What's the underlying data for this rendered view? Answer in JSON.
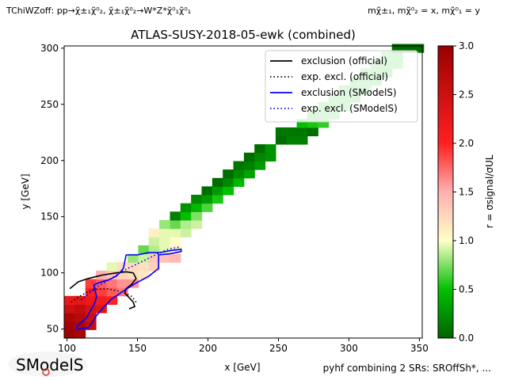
{
  "header": {
    "process_left": "TChiWZoff: pp→χ̃±₁χ̃⁰₂, χ̃±₁χ̃⁰₂→W*Z*χ̃⁰₁χ̃⁰₁",
    "masses_right": "mχ̃±₁, mχ̃⁰₂ = x, mχ̃⁰₁ = y"
  },
  "footer": {
    "combination_note": "pyhf combining 2 SRs: SROffSh*, ...",
    "logo_text": "SModelS"
  },
  "colors": {
    "exclusion_official": "#000000",
    "exclusion_smodels": "#0000ff"
  },
  "chart_data": {
    "type": "heatmap",
    "title": "ATLAS-SUSY-2018-05-ewk (combined)",
    "xlabel": "x [GeV]",
    "ylabel": "y [GeV]",
    "colorbar_label": "r = σsignal/σUL",
    "xlim": [
      98,
      352
    ],
    "ylim": [
      42,
      302
    ],
    "clim": [
      0,
      3
    ],
    "xticks": [
      100,
      150,
      200,
      250,
      300,
      350
    ],
    "yticks": [
      50,
      100,
      150,
      200,
      250,
      300
    ],
    "cticks": [
      0.0,
      0.5,
      1.0,
      1.5,
      2.0,
      2.5,
      3.0
    ],
    "grid": false,
    "legend_position": "top-right",
    "legend": [
      {
        "label": "exclusion (official)",
        "color": "#000000",
        "style": "solid"
      },
      {
        "label": "exp. excl. (official)",
        "color": "#000000",
        "style": "dotted"
      },
      {
        "label": "exclusion (SModelS)",
        "color": "#0000ff",
        "style": "solid"
      },
      {
        "label": "exp. excl. (SModelS)",
        "color": "#0000ff",
        "style": "dotted"
      }
    ],
    "cell_size": {
      "x": 7.5,
      "y": 7.5
    },
    "cells": [
      {
        "x": 101.75,
        "y": 45.75,
        "r": 2.95
      },
      {
        "x": 109.25,
        "y": 45.75,
        "r": 2.85
      },
      {
        "x": 101.75,
        "y": 53.25,
        "r": 2.9
      },
      {
        "x": 109.25,
        "y": 53.25,
        "r": 2.8
      },
      {
        "x": 116.75,
        "y": 53.25,
        "r": 2.6
      },
      {
        "x": 101.75,
        "y": 60.75,
        "r": 2.8
      },
      {
        "x": 109.25,
        "y": 60.75,
        "r": 2.7
      },
      {
        "x": 116.75,
        "y": 60.75,
        "r": 2.5
      },
      {
        "x": 101.75,
        "y": 68.25,
        "r": 2.5
      },
      {
        "x": 109.25,
        "y": 68.25,
        "r": 2.6
      },
      {
        "x": 116.75,
        "y": 68.25,
        "r": 2.4
      },
      {
        "x": 124.25,
        "y": 68.25,
        "r": 2.3
      },
      {
        "x": 101.75,
        "y": 75.75,
        "r": 2.2
      },
      {
        "x": 109.25,
        "y": 75.75,
        "r": 2.3
      },
      {
        "x": 116.75,
        "y": 75.75,
        "r": 2.2
      },
      {
        "x": 124.25,
        "y": 75.75,
        "r": 2.1
      },
      {
        "x": 131.75,
        "y": 75.75,
        "r": 2.0
      },
      {
        "x": 116.75,
        "y": 83.25,
        "r": 2.0
      },
      {
        "x": 124.25,
        "y": 83.25,
        "r": 1.9
      },
      {
        "x": 131.75,
        "y": 83.25,
        "r": 1.8
      },
      {
        "x": 139.25,
        "y": 83.25,
        "r": 1.7
      },
      {
        "x": 116.75,
        "y": 90.75,
        "r": 1.9
      },
      {
        "x": 124.25,
        "y": 90.75,
        "r": 1.8
      },
      {
        "x": 131.75,
        "y": 90.75,
        "r": 1.7
      },
      {
        "x": 139.25,
        "y": 90.75,
        "r": 1.6
      },
      {
        "x": 146.75,
        "y": 90.75,
        "r": 1.6
      },
      {
        "x": 124.25,
        "y": 98.25,
        "r": 1.5
      },
      {
        "x": 131.75,
        "y": 98.25,
        "r": 1.4
      },
      {
        "x": 139.25,
        "y": 98.25,
        "r": 1.3
      },
      {
        "x": 146.75,
        "y": 98.25,
        "r": 1.2
      },
      {
        "x": 154.25,
        "y": 98.25,
        "r": 1.15
      },
      {
        "x": 131.75,
        "y": 105.75,
        "r": 0.95
      },
      {
        "x": 139.25,
        "y": 105.75,
        "r": 1.2
      },
      {
        "x": 146.75,
        "y": 105.75,
        "r": 1.25
      },
      {
        "x": 154.25,
        "y": 105.75,
        "r": 1.2
      },
      {
        "x": 161.75,
        "y": 105.75,
        "r": 1.3
      },
      {
        "x": 146.75,
        "y": 113.25,
        "r": 0.8
      },
      {
        "x": 154.25,
        "y": 113.25,
        "r": 0.9
      },
      {
        "x": 161.75,
        "y": 113.25,
        "r": 1.35
      },
      {
        "x": 169.25,
        "y": 113.25,
        "r": 1.4
      },
      {
        "x": 176.75,
        "y": 113.25,
        "r": 1.45
      },
      {
        "x": 154.25,
        "y": 120.75,
        "r": 0.7
      },
      {
        "x": 161.75,
        "y": 120.75,
        "r": 0.85
      },
      {
        "x": 169.25,
        "y": 120.75,
        "r": 0.95
      },
      {
        "x": 176.75,
        "y": 120.75,
        "r": 1.1
      },
      {
        "x": 161.75,
        "y": 128.25,
        "r": 0.9
      },
      {
        "x": 169.25,
        "y": 128.25,
        "r": 0.95
      },
      {
        "x": 176.75,
        "y": 128.25,
        "r": 1.0
      },
      {
        "x": 161.75,
        "y": 135.75,
        "r": 1.1
      },
      {
        "x": 169.25,
        "y": 135.75,
        "r": 0.95
      },
      {
        "x": 176.75,
        "y": 135.75,
        "r": 0.95
      },
      {
        "x": 184.25,
        "y": 135.75,
        "r": 0.9
      },
      {
        "x": 169.25,
        "y": 143.25,
        "r": 0.8
      },
      {
        "x": 176.75,
        "y": 143.25,
        "r": 0.7
      },
      {
        "x": 184.25,
        "y": 143.25,
        "r": 0.85
      },
      {
        "x": 191.75,
        "y": 143.25,
        "r": 0.9
      },
      {
        "x": 176.75,
        "y": 150.75,
        "r": 0.15
      },
      {
        "x": 184.25,
        "y": 150.75,
        "r": 0.5
      },
      {
        "x": 191.75,
        "y": 150.75,
        "r": 0.75
      },
      {
        "x": 184.25,
        "y": 158.25,
        "r": 0.25
      },
      {
        "x": 191.75,
        "y": 158.25,
        "r": 0.45
      },
      {
        "x": 199.25,
        "y": 158.25,
        "r": 0.65
      },
      {
        "x": 191.75,
        "y": 165.75,
        "r": 0.2
      },
      {
        "x": 199.25,
        "y": 165.75,
        "r": 0.3
      },
      {
        "x": 206.75,
        "y": 165.75,
        "r": 0.55
      },
      {
        "x": 199.25,
        "y": 173.25,
        "r": 0.05
      },
      {
        "x": 206.75,
        "y": 173.25,
        "r": 0.3
      },
      {
        "x": 214.25,
        "y": 173.25,
        "r": 0.5
      },
      {
        "x": 206.75,
        "y": 180.75,
        "r": 0.05
      },
      {
        "x": 214.25,
        "y": 180.75,
        "r": 0.2
      },
      {
        "x": 221.75,
        "y": 180.75,
        "r": 0.45
      },
      {
        "x": 214.25,
        "y": 188.25,
        "r": 0.05
      },
      {
        "x": 221.75,
        "y": 188.25,
        "r": 0.2
      },
      {
        "x": 229.25,
        "y": 188.25,
        "r": 0.35
      },
      {
        "x": 221.75,
        "y": 195.75,
        "r": 0.1
      },
      {
        "x": 229.25,
        "y": 195.75,
        "r": 0.15
      },
      {
        "x": 236.75,
        "y": 195.75,
        "r": 0.3
      },
      {
        "x": 229.25,
        "y": 203.25,
        "r": 0.05
      },
      {
        "x": 236.75,
        "y": 203.25,
        "r": 0.2
      },
      {
        "x": 244.25,
        "y": 203.25,
        "r": 0.25
      },
      {
        "x": 236.75,
        "y": 210.75,
        "r": 0.05
      },
      {
        "x": 244.25,
        "y": 210.75,
        "r": 0.25
      },
      {
        "x": 251.75,
        "y": 218.25,
        "r": 0.05
      },
      {
        "x": 259.25,
        "y": 218.25,
        "r": 0.15
      },
      {
        "x": 266.75,
        "y": 218.25,
        "r": 0.15
      },
      {
        "x": 251.75,
        "y": 225.75,
        "r": 0.1
      },
      {
        "x": 259.25,
        "y": 225.75,
        "r": 0.1
      },
      {
        "x": 266.75,
        "y": 225.75,
        "r": 0.1
      },
      {
        "x": 274.25,
        "y": 225.75,
        "r": 0.05
      },
      {
        "x": 266.75,
        "y": 233.25,
        "r": 0.5
      },
      {
        "x": 274.25,
        "y": 233.25,
        "r": 0.55
      },
      {
        "x": 281.75,
        "y": 233.25,
        "r": 0.6
      },
      {
        "x": 274.25,
        "y": 240.75,
        "r": 0.55
      },
      {
        "x": 281.75,
        "y": 240.75,
        "r": 0.6
      },
      {
        "x": 289.25,
        "y": 240.75,
        "r": 0.6
      },
      {
        "x": 281.75,
        "y": 248.25,
        "r": 0.6
      },
      {
        "x": 289.25,
        "y": 248.25,
        "r": 0.6
      },
      {
        "x": 296.75,
        "y": 248.25,
        "r": 0.6
      },
      {
        "x": 289.25,
        "y": 255.75,
        "r": 0.6
      },
      {
        "x": 296.75,
        "y": 255.75,
        "r": 0.6
      },
      {
        "x": 304.25,
        "y": 255.75,
        "r": 0.6
      },
      {
        "x": 296.75,
        "y": 263.25,
        "r": 0.6
      },
      {
        "x": 304.25,
        "y": 263.25,
        "r": 0.6
      },
      {
        "x": 311.75,
        "y": 263.25,
        "r": 0.6
      },
      {
        "x": 304.25,
        "y": 270.75,
        "r": 0.6
      },
      {
        "x": 311.75,
        "y": 270.75,
        "r": 0.6
      },
      {
        "x": 319.25,
        "y": 270.75,
        "r": 0.6
      },
      {
        "x": 311.75,
        "y": 278.25,
        "r": 0.6
      },
      {
        "x": 319.25,
        "y": 278.25,
        "r": 0.6
      },
      {
        "x": 326.75,
        "y": 278.25,
        "r": 0.55
      },
      {
        "x": 319.25,
        "y": 285.75,
        "r": 0.6
      },
      {
        "x": 326.75,
        "y": 285.75,
        "r": 0.6
      },
      {
        "x": 334.25,
        "y": 285.75,
        "r": 0.6
      },
      {
        "x": 326.75,
        "y": 293.25,
        "r": 0.6
      },
      {
        "x": 334.25,
        "y": 293.25,
        "r": 0.6
      },
      {
        "x": 334.25,
        "y": 300.0,
        "r": 0.05
      },
      {
        "x": 341.75,
        "y": 300.0,
        "r": 0.05
      },
      {
        "x": 349.25,
        "y": 300.0,
        "r": 0.05
      }
    ],
    "series": [
      {
        "name": "exclusion (official)",
        "style": "solid",
        "color": "#000000",
        "points": [
          [
            102,
            86
          ],
          [
            108,
            92
          ],
          [
            115,
            95
          ],
          [
            125,
            98
          ],
          [
            135,
            100
          ],
          [
            142,
            101
          ],
          [
            147,
            100
          ],
          [
            149,
            95
          ],
          [
            146,
            90
          ],
          [
            142,
            86
          ],
          [
            141,
            82
          ],
          [
            144,
            78
          ],
          [
            147,
            74
          ],
          [
            148,
            70
          ],
          [
            144,
            68
          ]
        ]
      },
      {
        "name": "exp. excl. (official)",
        "style": "dotted",
        "color": "#000000",
        "points": [
          [
            103,
            74
          ],
          [
            110,
            80
          ],
          [
            118,
            85
          ],
          [
            128,
            86
          ],
          [
            136,
            84
          ],
          [
            141,
            82
          ],
          [
            146,
            79
          ],
          [
            149,
            74
          ]
        ]
      },
      {
        "name": "exclusion (SModelS)",
        "style": "solid",
        "color": "#0000ff",
        "points": [
          [
            107,
            49
          ],
          [
            107,
            52
          ],
          [
            110,
            56
          ],
          [
            114,
            60
          ],
          [
            116,
            65
          ],
          [
            118,
            69
          ],
          [
            120,
            74
          ],
          [
            121,
            79
          ],
          [
            120,
            84
          ],
          [
            119,
            89
          ],
          [
            122,
            91
          ],
          [
            130,
            94
          ],
          [
            135,
            97
          ],
          [
            138,
            101
          ],
          [
            140,
            104
          ],
          [
            141,
            110
          ],
          [
            142,
            116
          ],
          [
            150,
            116
          ],
          [
            158,
            118
          ],
          [
            166,
            118
          ],
          [
            174,
            120
          ],
          [
            181,
            121
          ],
          [
            181,
            119
          ],
          [
            173,
            117
          ],
          [
            165,
            116
          ],
          [
            165,
            104
          ],
          [
            158,
            97
          ],
          [
            149,
            91
          ],
          [
            144,
            87
          ],
          [
            139,
            83
          ],
          [
            131,
            76
          ],
          [
            125,
            68
          ],
          [
            121,
            62
          ],
          [
            118,
            56
          ],
          [
            115,
            51
          ],
          [
            108,
            50
          ]
        ]
      },
      {
        "name": "exp. excl. (SModelS)",
        "style": "dotted",
        "color": "#0000ff",
        "points": [
          [
            110,
            76
          ],
          [
            116,
            82
          ],
          [
            122,
            88
          ],
          [
            130,
            94
          ],
          [
            140,
            102
          ],
          [
            150,
            108
          ],
          [
            158,
            113
          ],
          [
            166,
            118
          ],
          [
            172,
            121
          ],
          [
            180,
            123
          ]
        ]
      }
    ]
  }
}
